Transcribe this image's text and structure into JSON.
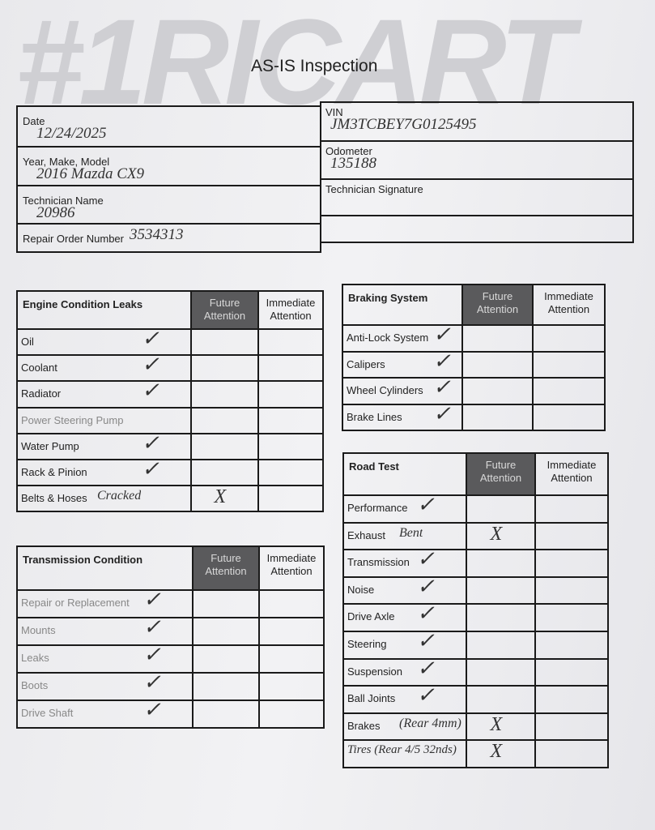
{
  "logo": "#1RICART",
  "title": "AS-IS Inspection",
  "header_fields": {
    "left": [
      {
        "label": "Date",
        "value": "12/24/2025"
      },
      {
        "label": "Year, Make, Model",
        "value": "2016 Mazda CX9"
      },
      {
        "label": "Technician Name",
        "value": "20986"
      },
      {
        "label": "Repair Order Number",
        "value": "3534313"
      }
    ],
    "right": [
      {
        "label": "VIN",
        "value": "JM3TCBEY7G0125495"
      },
      {
        "label": "Odometer",
        "value": "135188"
      },
      {
        "label": "Technician Signature"
      }
    ]
  },
  "sections": [
    {
      "title": "Engine Condition Leaks",
      "columns": [
        "Future Attention",
        "Immediate Attention"
      ],
      "rows": [
        {
          "item": "Oil",
          "check": "✓"
        },
        {
          "item": "Coolant",
          "check": "✓"
        },
        {
          "item": "Radiator",
          "check": "✓"
        },
        {
          "item": "Power Steering Pump"
        },
        {
          "item": "Water Pump",
          "check": "✓"
        },
        {
          "item": "Rack & Pinion",
          "check": "✓"
        },
        {
          "item": "Belts & Hoses",
          "note": "Cracked",
          "future": "X"
        }
      ]
    },
    {
      "title": "Transmission Condition",
      "columns": [
        "Future Attention",
        "Immediate Attention"
      ],
      "rows": [
        {
          "item": "Repair or Replacement",
          "check": "✓"
        },
        {
          "item": "Mounts",
          "check": "✓"
        },
        {
          "item": "Leaks",
          "check": "✓"
        },
        {
          "item": "Boots",
          "check": "✓"
        },
        {
          "item": "Drive Shaft",
          "check": "✓"
        }
      ]
    },
    {
      "title": "Braking System",
      "columns": [
        "Future Attention",
        "Immediate Attention"
      ],
      "rows": [
        {
          "item": "Anti-Lock System",
          "check": "✓"
        },
        {
          "item": "Calipers",
          "check": "✓"
        },
        {
          "item": "Wheel Cylinders",
          "check": "✓"
        },
        {
          "item": "Brake Lines",
          "check": "✓"
        }
      ]
    },
    {
      "title": "Road Test",
      "columns": [
        "Future Attention",
        "Immediate Attention"
      ],
      "rows": [
        {
          "item": "Performance",
          "check": "✓"
        },
        {
          "item": "Exhaust",
          "note": "Bent",
          "future": "X"
        },
        {
          "item": "Transmission",
          "check": "✓"
        },
        {
          "item": "Noise",
          "check": "✓"
        },
        {
          "item": "Drive Axle",
          "check": "✓"
        },
        {
          "item": "Steering",
          "check": "✓"
        },
        {
          "item": "Suspension",
          "check": "✓"
        },
        {
          "item": "Ball Joints",
          "check": "✓"
        },
        {
          "item": "Brakes",
          "note": "(Rear 4mm)",
          "future": "X"
        },
        {
          "note": "Tires (Rear 4/5 32nds)",
          "future": "X"
        }
      ]
    }
  ]
}
